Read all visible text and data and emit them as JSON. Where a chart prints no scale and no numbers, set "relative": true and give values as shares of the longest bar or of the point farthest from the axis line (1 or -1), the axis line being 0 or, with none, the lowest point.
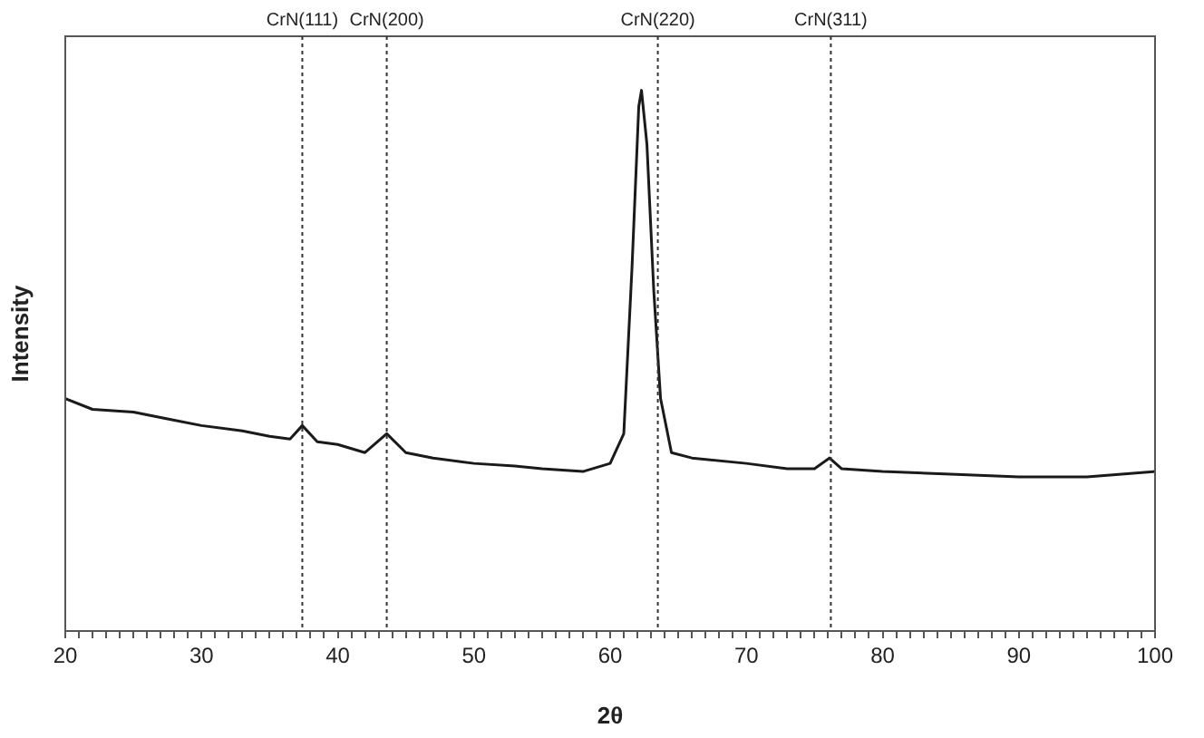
{
  "chart_data": {
    "type": "line",
    "xlabel": "2θ",
    "ylabel": "Intensity",
    "relative": true,
    "grid": false,
    "legend": false,
    "marker": "none",
    "line_style": "solid",
    "xlim": [
      20,
      100
    ],
    "xticks": [
      20,
      {
        "value": 21,
        "label": null
      },
      {
        "value": 22,
        "label": null
      },
      {
        "value": 23,
        "label": null
      },
      {
        "value": 24,
        "label": null
      },
      {
        "value": 25,
        "label": null
      },
      {
        "value": 26,
        "label": null
      },
      {
        "value": 27,
        "label": null
      },
      {
        "value": 28,
        "label": null
      },
      {
        "value": 29,
        "label": null
      },
      30,
      {
        "value": 31,
        "label": null
      },
      {
        "value": 32,
        "label": null
      },
      {
        "value": 33,
        "label": null
      },
      {
        "value": 34,
        "label": null
      },
      {
        "value": 35,
        "label": null
      },
      {
        "value": 36,
        "label": null
      },
      {
        "value": 37,
        "label": null
      },
      {
        "value": 38,
        "label": null
      },
      {
        "value": 39,
        "label": null
      },
      40,
      {
        "value": 41,
        "label": null
      },
      {
        "value": 42,
        "label": null
      },
      {
        "value": 43,
        "label": null
      },
      {
        "value": 44,
        "label": null
      },
      {
        "value": 45,
        "label": null
      },
      {
        "value": 46,
        "label": null
      },
      {
        "value": 47,
        "label": null
      },
      {
        "value": 48,
        "label": null
      },
      {
        "value": 49,
        "label": null
      },
      50,
      {
        "value": 51,
        "label": null
      },
      {
        "value": 52,
        "label": null
      },
      {
        "value": 53,
        "label": null
      },
      {
        "value": 54,
        "label": null
      },
      {
        "value": 55,
        "label": null
      },
      {
        "value": 56,
        "label": null
      },
      {
        "value": 57,
        "label": null
      },
      {
        "value": 58,
        "label": null
      },
      {
        "value": 59,
        "label": null
      },
      60,
      {
        "value": 61,
        "label": null
      },
      {
        "value": 62,
        "label": null
      },
      {
        "value": 63,
        "label": null
      },
      {
        "value": 64,
        "label": null
      },
      {
        "value": 65,
        "label": null
      },
      {
        "value": 66,
        "label": null
      },
      {
        "value": 67,
        "label": null
      },
      {
        "value": 68,
        "label": null
      },
      {
        "value": 69,
        "label": null
      },
      70,
      {
        "value": 71,
        "label": null
      },
      {
        "value": 72,
        "label": null
      },
      {
        "value": 73,
        "label": null
      },
      {
        "value": 74,
        "label": null
      },
      {
        "value": 75,
        "label": null
      },
      {
        "value": 76,
        "label": null
      },
      {
        "value": 77,
        "label": null
      },
      {
        "value": 78,
        "label": null
      },
      {
        "value": 79,
        "label": null
      },
      80,
      {
        "value": 81,
        "label": null
      },
      {
        "value": 82,
        "label": null
      },
      {
        "value": 83,
        "label": null
      },
      {
        "value": 84,
        "label": null
      },
      {
        "value": 85,
        "label": null
      },
      {
        "value": 86,
        "label": null
      },
      {
        "value": 87,
        "label": null
      },
      {
        "value": 88,
        "label": null
      },
      {
        "value": 89,
        "label": null
      },
      90,
      {
        "value": 91,
        "label": null
      },
      {
        "value": 92,
        "label": null
      },
      {
        "value": 93,
        "label": null
      },
      {
        "value": 94,
        "label": null
      },
      {
        "value": 95,
        "label": null
      },
      {
        "value": 96,
        "label": null
      },
      {
        "value": 97,
        "label": null
      },
      {
        "value": 98,
        "label": null
      },
      {
        "value": 99,
        "label": null
      },
      100
    ],
    "series": [
      {
        "color": "#1a1a1a",
        "x": [
          20,
          22,
          25,
          28,
          30,
          33,
          35,
          36.5,
          37.4,
          38.5,
          40,
          42,
          43.6,
          45,
          47,
          50,
          53,
          55,
          58,
          60,
          61,
          61.6,
          62.1,
          62.3,
          62.7,
          63.2,
          63.7,
          64.5,
          66,
          70,
          73,
          75,
          76.1,
          77,
          80,
          85,
          90,
          95,
          100
        ],
        "values": [
          0.43,
          0.41,
          0.405,
          0.39,
          0.38,
          0.37,
          0.36,
          0.355,
          0.38,
          0.35,
          0.345,
          0.33,
          0.365,
          0.33,
          0.32,
          0.31,
          0.305,
          0.3,
          0.295,
          0.31,
          0.365,
          0.67,
          0.97,
          1,
          0.9,
          0.63,
          0.43,
          0.33,
          0.32,
          0.31,
          0.3,
          0.3,
          0.32,
          0.3,
          0.295,
          0.29,
          0.285,
          0.285,
          0.295
        ]
      }
    ],
    "ref_lines": [
      {
        "axis": "x",
        "value": 37.4,
        "label": "CrN(111)",
        "line_style": "dotted",
        "color": "#333333"
      },
      {
        "axis": "x",
        "value": 43.6,
        "label": "CrN(200)",
        "line_style": "dotted",
        "color": "#333333"
      },
      {
        "axis": "x",
        "value": 63.5,
        "label": "CrN(220)",
        "line_style": "dotted",
        "color": "#333333"
      },
      {
        "axis": "x",
        "value": 76.2,
        "label": "CrN(311)",
        "line_style": "dotted",
        "color": "#333333"
      }
    ]
  }
}
